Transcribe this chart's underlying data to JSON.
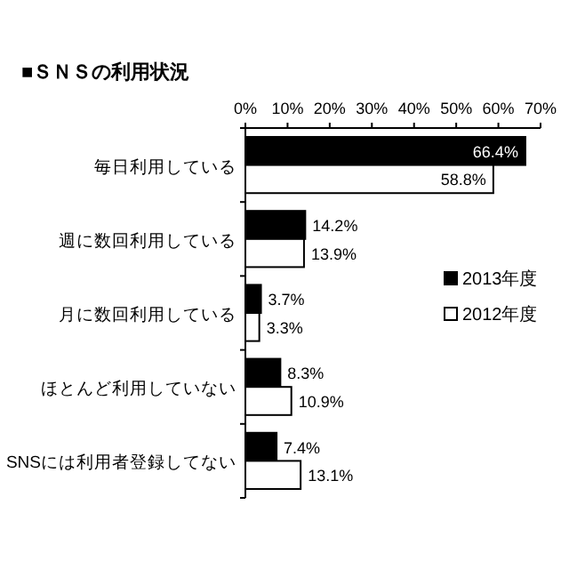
{
  "chart_data": {
    "type": "bar",
    "orientation": "horizontal",
    "title": "■ＳＮＳの利用状況",
    "categories": [
      "毎日利用している",
      "週に数回利用している",
      "月に数回利用している",
      "ほとんど利用していない",
      "SNSには利用者登録してない"
    ],
    "series": [
      {
        "name": "2013年度",
        "color": "#000000",
        "values": [
          66.4,
          14.2,
          3.7,
          8.3,
          7.4
        ],
        "value_labels": [
          "66.4%",
          "14.2%",
          "3.7%",
          "8.3%",
          "7.4%"
        ]
      },
      {
        "name": "2012年度",
        "color": "#ffffff",
        "values": [
          58.8,
          13.9,
          3.3,
          10.9,
          13.1
        ],
        "value_labels": [
          "58.8%",
          "13.9%",
          "3.3%",
          "10.9%",
          "13.1%"
        ]
      }
    ],
    "xlim": [
      0,
      70
    ],
    "xticks": [
      {
        "value": 0,
        "label": "0%"
      },
      {
        "value": 10,
        "label": "10%"
      },
      {
        "value": 20,
        "label": "20%"
      },
      {
        "value": 30,
        "label": "30%"
      },
      {
        "value": 40,
        "label": "40%"
      },
      {
        "value": 50,
        "label": "50%"
      },
      {
        "value": 60,
        "label": "60%"
      },
      {
        "value": 70,
        "label": "70%"
      }
    ],
    "legend": "right",
    "grid": false
  }
}
